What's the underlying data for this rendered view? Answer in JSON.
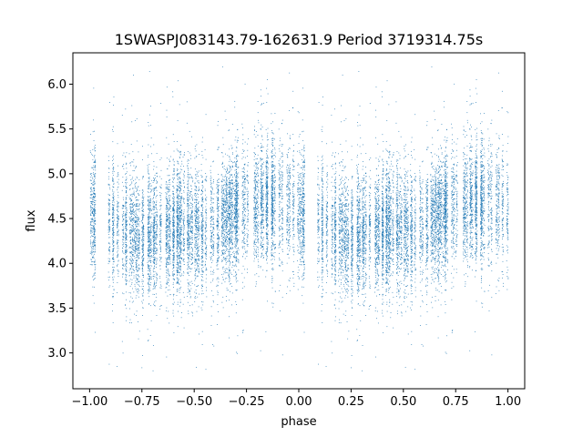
{
  "chart_data": {
    "type": "scatter",
    "title": "1SWASPJ083143.79-162631.9 Period 3719314.75s",
    "xlabel": "phase",
    "ylabel": "flux",
    "xlim": [
      -1.08,
      1.08
    ],
    "ylim": [
      2.6,
      6.35
    ],
    "x_ticks": [
      -1.0,
      -0.75,
      -0.5,
      -0.25,
      0.0,
      0.25,
      0.5,
      0.75,
      1.0
    ],
    "x_tick_labels": [
      "−1.00",
      "−0.75",
      "−0.50",
      "−0.25",
      "0.00",
      "0.25",
      "0.50",
      "0.75",
      "1.00"
    ],
    "y_ticks": [
      3.0,
      3.5,
      4.0,
      4.5,
      5.0,
      5.5,
      6.0
    ],
    "y_tick_labels": [
      "3.0",
      "3.5",
      "4.0",
      "4.5",
      "5.0",
      "5.5",
      "6.0"
    ],
    "grid": false,
    "marker_color": "#1f77b4",
    "series": [
      {
        "x_range": [
          -1.0,
          1.0
        ],
        "period_in_phase": 1.0,
        "mean_flux_profile": [
          {
            "phase": 0.0,
            "flux": 4.6
          },
          {
            "phase": 0.05,
            "flux": 4.5
          },
          {
            "phase": 0.15,
            "flux": 4.4
          },
          {
            "phase": 0.25,
            "flux": 4.3
          },
          {
            "phase": 0.35,
            "flux": 4.35
          },
          {
            "phase": 0.45,
            "flux": 4.4
          },
          {
            "phase": 0.55,
            "flux": 4.35
          },
          {
            "phase": 0.65,
            "flux": 4.5
          },
          {
            "phase": 0.75,
            "flux": 4.65
          },
          {
            "phase": 0.85,
            "flux": 4.7
          },
          {
            "phase": 0.95,
            "flux": 4.65
          },
          {
            "phase": 1.0,
            "flux": 4.6
          }
        ],
        "scatter_sigma": 0.33,
        "flux_range": [
          2.75,
          6.2
        ]
      }
    ]
  }
}
